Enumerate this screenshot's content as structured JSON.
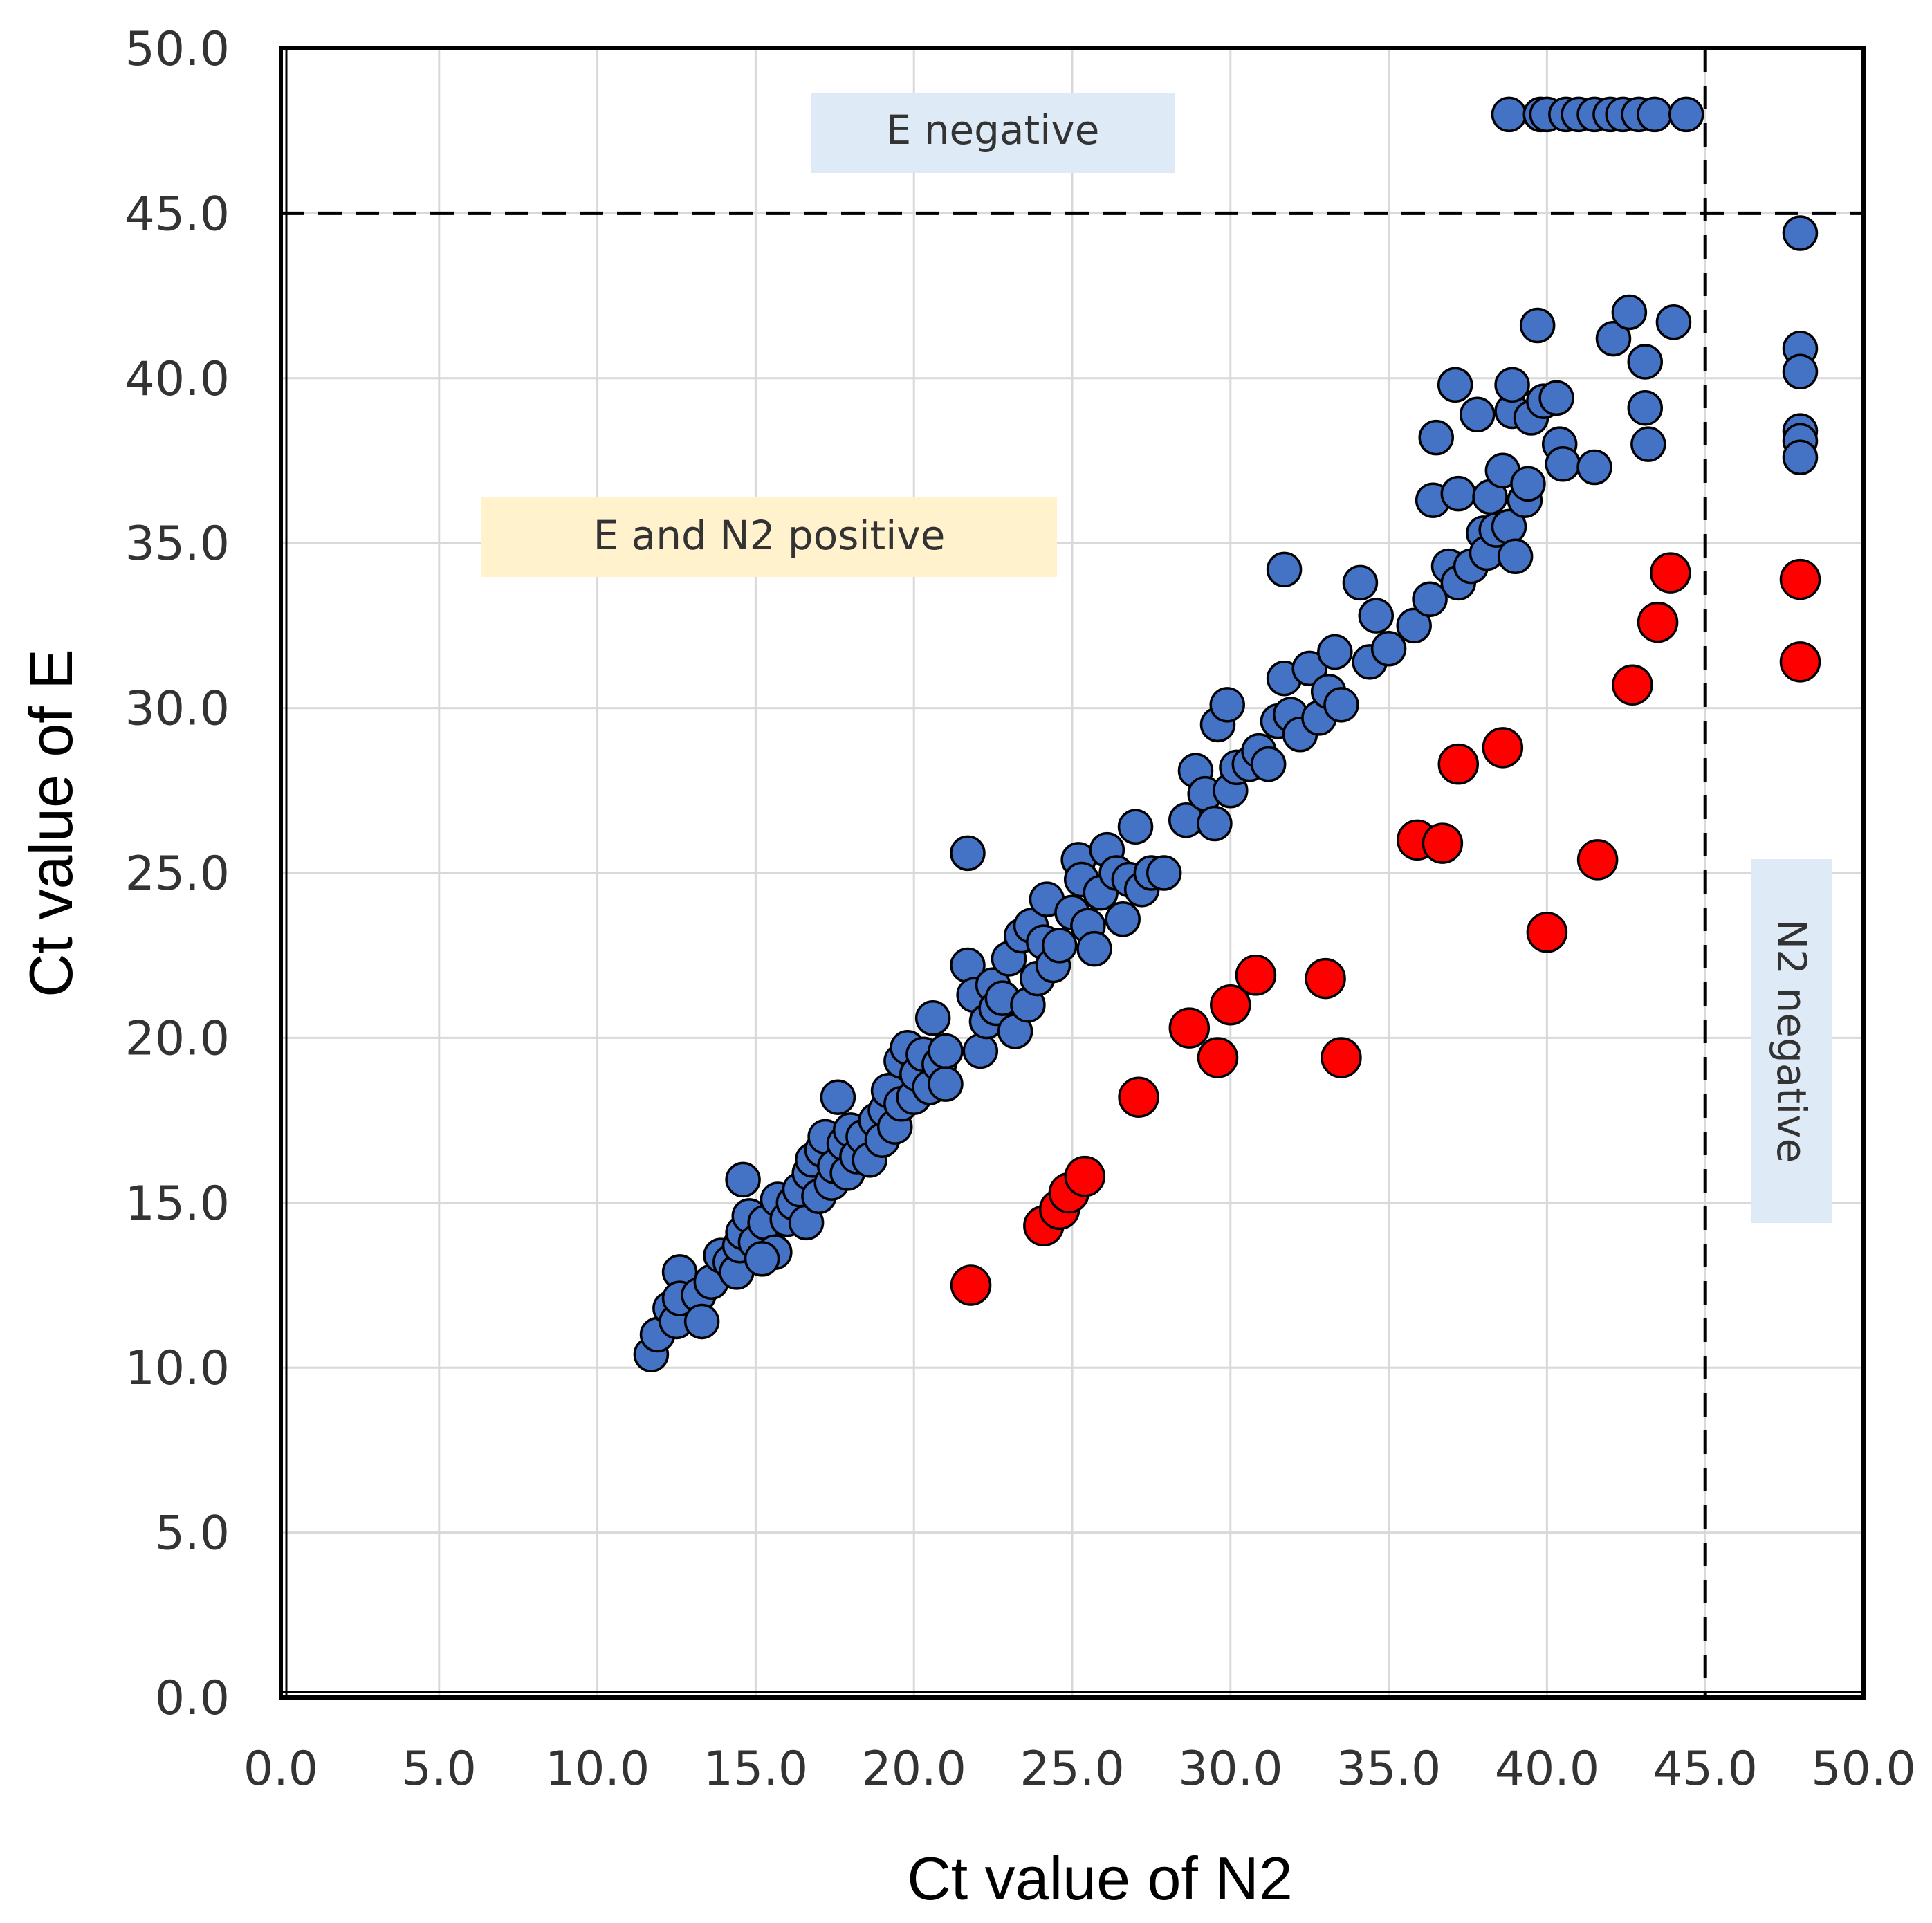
{
  "chart_data": {
    "type": "scatter",
    "title": "",
    "xlabel": "Ct value of N2",
    "ylabel": "Ct value of E",
    "xlim": [
      0,
      50
    ],
    "ylim": [
      0,
      50
    ],
    "x_ticks": [
      "0.0",
      "5.0",
      "10.0",
      "15.0",
      "20.0",
      "25.0",
      "30.0",
      "35.0",
      "40.0",
      "45.0",
      "50.0"
    ],
    "y_ticks": [
      "0.0",
      "5.0",
      "10.0",
      "15.0",
      "20.0",
      "25.0",
      "30.0",
      "35.0",
      "40.0",
      "45.0",
      "50.0"
    ],
    "grid": true,
    "cutoffs": {
      "x": 45,
      "y": 45
    },
    "regions": {
      "e_negative": "E negative",
      "both_positive": "E and N2 positive",
      "n2_negative": "N2 negative"
    },
    "colors": {
      "blue": "#4472c4",
      "red": "#ff0000",
      "e_negative_box": "#deebf7",
      "both_positive_box": "#fff2cc",
      "n2_negative_box": "#deebf7",
      "grid": "#d9d9d9",
      "frame": "#000000"
    },
    "series": [
      {
        "name": "blue",
        "points": [
          [
            11.7,
            10.4
          ],
          [
            11.9,
            11.0
          ],
          [
            12.3,
            11.8
          ],
          [
            12.5,
            11.4
          ],
          [
            12.6,
            12.9
          ],
          [
            12.6,
            12.1
          ],
          [
            13.2,
            12.2
          ],
          [
            13.3,
            11.4
          ],
          [
            13.6,
            12.6
          ],
          [
            13.9,
            13.4
          ],
          [
            14.2,
            13.2
          ],
          [
            14.4,
            12.9
          ],
          [
            14.5,
            13.7
          ],
          [
            14.6,
            14.1
          ],
          [
            14.8,
            14.6
          ],
          [
            14.6,
            15.7
          ],
          [
            15.0,
            13.8
          ],
          [
            15.3,
            14.4
          ],
          [
            15.6,
            13.5
          ],
          [
            15.7,
            15.1
          ],
          [
            15.2,
            13.3
          ],
          [
            16.0,
            14.5
          ],
          [
            16.2,
            15.0
          ],
          [
            16.4,
            15.4
          ],
          [
            16.6,
            14.4
          ],
          [
            16.7,
            15.9
          ],
          [
            16.8,
            16.3
          ],
          [
            17.0,
            15.2
          ],
          [
            17.1,
            16.6
          ],
          [
            17.2,
            17.0
          ],
          [
            17.4,
            15.6
          ],
          [
            17.5,
            16.1
          ],
          [
            17.6,
            18.2
          ],
          [
            17.8,
            16.8
          ],
          [
            17.9,
            15.9
          ],
          [
            18.0,
            17.2
          ],
          [
            18.2,
            16.4
          ],
          [
            18.4,
            17.0
          ],
          [
            18.6,
            16.3
          ],
          [
            18.8,
            17.5
          ],
          [
            19.0,
            16.9
          ],
          [
            19.1,
            17.8
          ],
          [
            19.2,
            18.4
          ],
          [
            19.4,
            17.3
          ],
          [
            19.6,
            18.0
          ],
          [
            19.6,
            19.3
          ],
          [
            19.8,
            19.7
          ],
          [
            20.0,
            18.2
          ],
          [
            20.1,
            18.9
          ],
          [
            20.3,
            19.5
          ],
          [
            20.5,
            18.5
          ],
          [
            20.6,
            20.6
          ],
          [
            20.8,
            19.2
          ],
          [
            21.0,
            19.6
          ],
          [
            21.0,
            18.6
          ],
          [
            21.7,
            25.6
          ],
          [
            21.7,
            22.2
          ],
          [
            21.9,
            21.3
          ],
          [
            22.1,
            19.6
          ],
          [
            22.3,
            20.5
          ],
          [
            22.5,
            21.6
          ],
          [
            22.6,
            20.9
          ],
          [
            22.8,
            21.2
          ],
          [
            23.0,
            22.4
          ],
          [
            23.2,
            20.2
          ],
          [
            23.4,
            23.1
          ],
          [
            23.6,
            21.0
          ],
          [
            23.7,
            23.4
          ],
          [
            23.9,
            21.8
          ],
          [
            24.1,
            22.9
          ],
          [
            24.2,
            24.2
          ],
          [
            24.4,
            22.2
          ],
          [
            24.6,
            22.8
          ],
          [
            25.0,
            23.8
          ],
          [
            25.2,
            25.4
          ],
          [
            25.3,
            24.8
          ],
          [
            25.5,
            23.4
          ],
          [
            25.7,
            22.7
          ],
          [
            25.9,
            24.4
          ],
          [
            26.1,
            25.7
          ],
          [
            26.4,
            25.0
          ],
          [
            26.6,
            23.6
          ],
          [
            26.8,
            24.8
          ],
          [
            27.0,
            26.4
          ],
          [
            27.2,
            24.5
          ],
          [
            27.5,
            25.0
          ],
          [
            27.9,
            25.0
          ],
          [
            28.6,
            26.6
          ],
          [
            28.9,
            28.1
          ],
          [
            29.2,
            27.4
          ],
          [
            29.5,
            26.5
          ],
          [
            29.6,
            29.5
          ],
          [
            29.9,
            30.1
          ],
          [
            30.0,
            27.5
          ],
          [
            30.2,
            28.2
          ],
          [
            30.6,
            28.3
          ],
          [
            30.9,
            28.7
          ],
          [
            31.2,
            28.3
          ],
          [
            31.5,
            29.6
          ],
          [
            31.7,
            34.2
          ],
          [
            31.7,
            30.9
          ],
          [
            31.9,
            29.8
          ],
          [
            32.2,
            29.2
          ],
          [
            32.5,
            31.2
          ],
          [
            32.8,
            29.7
          ],
          [
            33.1,
            30.5
          ],
          [
            33.3,
            31.7
          ],
          [
            33.5,
            30.1
          ],
          [
            34.1,
            33.8
          ],
          [
            34.4,
            31.4
          ],
          [
            34.6,
            32.8
          ],
          [
            35.0,
            31.8
          ],
          [
            35.8,
            32.5
          ],
          [
            36.3,
            33.3
          ],
          [
            36.4,
            36.3
          ],
          [
            36.5,
            38.2
          ],
          [
            36.9,
            34.3
          ],
          [
            37.2,
            33.8
          ],
          [
            37.2,
            36.5
          ],
          [
            37.1,
            39.8
          ],
          [
            37.6,
            34.3
          ],
          [
            37.8,
            38.9
          ],
          [
            38.0,
            35.3
          ],
          [
            38.1,
            34.7
          ],
          [
            38.2,
            36.4
          ],
          [
            38.4,
            35.4
          ],
          [
            38.6,
            37.2
          ],
          [
            38.8,
            35.5
          ],
          [
            38.9,
            39.0
          ],
          [
            38.9,
            39.8
          ],
          [
            39.0,
            34.6
          ],
          [
            39.3,
            36.3
          ],
          [
            39.4,
            36.8
          ],
          [
            39.5,
            38.8
          ],
          [
            39.7,
            41.6
          ],
          [
            39.9,
            39.3
          ],
          [
            40.3,
            39.4
          ],
          [
            40.4,
            38.0
          ],
          [
            40.5,
            37.4
          ],
          [
            41.5,
            37.3
          ],
          [
            42.1,
            41.2
          ],
          [
            42.6,
            42.0
          ],
          [
            43.1,
            40.5
          ],
          [
            43.1,
            39.1
          ],
          [
            43.2,
            38.0
          ],
          [
            44.0,
            41.7
          ],
          [
            48.0,
            44.4
          ],
          [
            48.0,
            40.9
          ],
          [
            48.0,
            40.2
          ],
          [
            48.0,
            38.4
          ],
          [
            48.0,
            38.1
          ],
          [
            48.0,
            37.6
          ],
          [
            38.8,
            48.0
          ],
          [
            39.8,
            48.0
          ],
          [
            40.0,
            48.0
          ],
          [
            40.6,
            48.0
          ],
          [
            41.0,
            48.0
          ],
          [
            41.5,
            48.0
          ],
          [
            42.0,
            48.0
          ],
          [
            42.4,
            48.0
          ],
          [
            42.9,
            48.0
          ],
          [
            43.4,
            48.0
          ],
          [
            44.4,
            48.0
          ]
        ]
      },
      {
        "name": "red",
        "points": [
          [
            21.8,
            12.5
          ],
          [
            24.1,
            14.3
          ],
          [
            24.6,
            14.8
          ],
          [
            24.9,
            15.3
          ],
          [
            25.4,
            15.8
          ],
          [
            27.1,
            18.2
          ],
          [
            28.7,
            20.3
          ],
          [
            29.6,
            19.4
          ],
          [
            30.0,
            21.0
          ],
          [
            30.8,
            21.9
          ],
          [
            33.0,
            21.8
          ],
          [
            33.5,
            19.4
          ],
          [
            35.9,
            26.0
          ],
          [
            36.7,
            25.9
          ],
          [
            37.2,
            28.3
          ],
          [
            38.6,
            28.8
          ],
          [
            40.0,
            23.2
          ],
          [
            41.6,
            25.4
          ],
          [
            42.7,
            30.7
          ],
          [
            43.5,
            32.6
          ],
          [
            43.9,
            34.1
          ],
          [
            48.0,
            33.9
          ],
          [
            48.0,
            31.4
          ]
        ]
      }
    ]
  }
}
